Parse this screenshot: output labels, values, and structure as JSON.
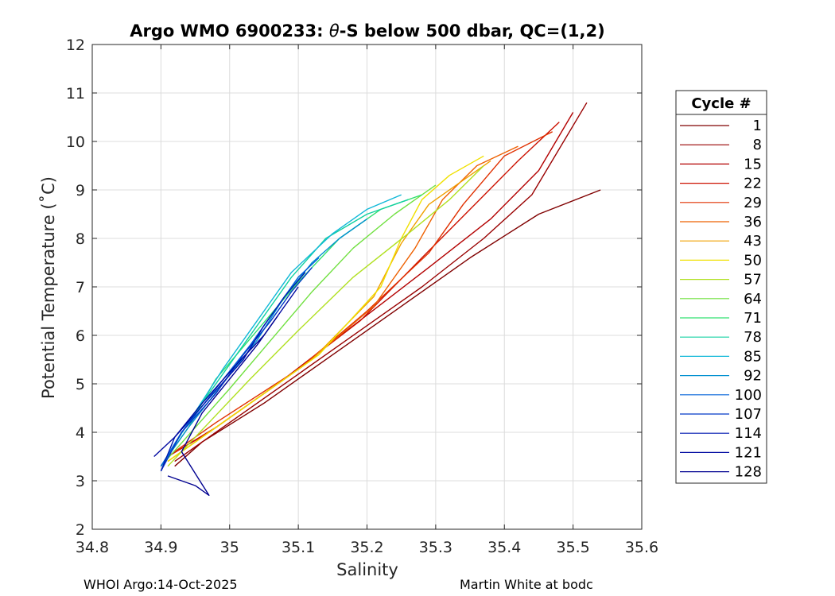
{
  "chart_data": {
    "type": "line",
    "title_prefix": "Argo WMO 6900233: ",
    "title_theta": "θ",
    "title_suffix": "-S below 500 dbar,  QC=(1,2)",
    "xlabel": "Salinity",
    "ylabel": "Potential Temperature (˚C)",
    "xlim": [
      34.8,
      35.6
    ],
    "ylim": [
      2,
      12
    ],
    "xticks": [
      "34.8",
      "34.9",
      "35",
      "35.1",
      "35.2",
      "35.3",
      "35.4",
      "35.5",
      "35.6"
    ],
    "yticks": [
      "2",
      "3",
      "4",
      "5",
      "6",
      "7",
      "8",
      "9",
      "10",
      "11",
      "12"
    ],
    "grid": true,
    "legend_title": "Cycle #",
    "legend_position": "right",
    "series": [
      {
        "name": "1",
        "color": "#800000",
        "x": [
          34.92,
          34.96,
          35.05,
          35.15,
          35.25,
          35.35,
          35.45,
          35.54
        ],
        "y": [
          3.3,
          3.8,
          4.6,
          5.6,
          6.6,
          7.6,
          8.5,
          9.0
        ]
      },
      {
        "name": "8",
        "color": "#990000",
        "x": [
          34.92,
          34.97,
          35.06,
          35.17,
          35.28,
          35.37,
          35.44,
          35.52
        ],
        "y": [
          3.4,
          3.9,
          4.8,
          5.9,
          7.0,
          8.0,
          8.9,
          10.8
        ]
      },
      {
        "name": "15",
        "color": "#b30000",
        "x": [
          34.91,
          34.97,
          35.07,
          35.18,
          35.29,
          35.38,
          35.45,
          35.5
        ],
        "y": [
          3.5,
          4.0,
          5.0,
          6.2,
          7.4,
          8.4,
          9.4,
          10.6
        ]
      },
      {
        "name": "22",
        "color": "#cc1100",
        "x": [
          34.91,
          34.98,
          35.08,
          35.19,
          35.28,
          35.35,
          35.42,
          35.48
        ],
        "y": [
          3.5,
          4.1,
          5.1,
          6.3,
          7.6,
          8.6,
          9.6,
          10.4
        ]
      },
      {
        "name": "29",
        "color": "#e03000",
        "x": [
          34.91,
          34.98,
          35.1,
          35.2,
          35.29,
          35.34,
          35.4,
          35.47
        ],
        "y": [
          3.5,
          4.2,
          5.3,
          6.5,
          7.7,
          8.7,
          9.7,
          10.2
        ]
      },
      {
        "name": "36",
        "color": "#ee6000",
        "x": [
          34.91,
          34.99,
          35.11,
          35.21,
          35.27,
          35.31,
          35.36,
          35.42
        ],
        "y": [
          3.4,
          4.2,
          5.4,
          6.6,
          7.8,
          8.8,
          9.5,
          9.9
        ]
      },
      {
        "name": "43",
        "color": "#f0a000",
        "x": [
          34.91,
          35.0,
          35.12,
          35.21,
          35.25,
          35.29,
          35.34,
          35.38
        ],
        "y": [
          3.4,
          4.3,
          5.5,
          6.8,
          7.9,
          8.7,
          9.2,
          9.6
        ]
      },
      {
        "name": "50",
        "color": "#f0e000",
        "x": [
          34.91,
          35.0,
          35.13,
          35.22,
          35.25,
          35.28,
          35.32,
          35.37
        ],
        "y": [
          3.4,
          4.3,
          5.6,
          7.0,
          8.0,
          8.8,
          9.3,
          9.7
        ]
      },
      {
        "name": "57",
        "color": "#b0e020",
        "x": [
          34.91,
          34.97,
          35.03,
          35.1,
          35.18,
          35.26,
          35.32,
          35.37
        ],
        "y": [
          3.3,
          4.2,
          5.1,
          6.1,
          7.2,
          8.1,
          8.8,
          9.5
        ]
      },
      {
        "name": "64",
        "color": "#70e040",
        "x": [
          34.9,
          34.95,
          35.0,
          35.06,
          35.12,
          35.18,
          35.24,
          35.3
        ],
        "y": [
          3.3,
          4.1,
          4.9,
          5.9,
          6.9,
          7.8,
          8.5,
          9.1
        ]
      },
      {
        "name": "71",
        "color": "#30e070",
        "x": [
          34.9,
          34.94,
          34.98,
          35.04,
          35.1,
          35.16,
          35.22,
          35.28
        ],
        "y": [
          3.3,
          4.1,
          5.1,
          6.1,
          7.1,
          8.0,
          8.6,
          8.9
        ]
      },
      {
        "name": "78",
        "color": "#10d0a0",
        "x": [
          34.9,
          34.94,
          34.99,
          35.04,
          35.09,
          35.14,
          35.2,
          35.26
        ],
        "y": [
          3.3,
          4.2,
          5.2,
          6.2,
          7.2,
          8.0,
          8.5,
          8.8
        ]
      },
      {
        "name": "85",
        "color": "#10b8d8",
        "x": [
          34.9,
          34.94,
          34.99,
          35.04,
          35.09,
          35.15,
          35.2,
          35.25
        ],
        "y": [
          3.3,
          4.2,
          5.3,
          6.3,
          7.3,
          8.1,
          8.6,
          8.9
        ]
      },
      {
        "name": "92",
        "color": "#0090d0",
        "x": [
          34.9,
          34.94,
          34.99,
          35.04,
          35.08,
          35.12,
          35.16,
          35.2
        ],
        "y": [
          3.3,
          4.1,
          5.0,
          5.9,
          6.8,
          7.5,
          8.0,
          8.4
        ]
      },
      {
        "name": "100",
        "color": "#0060d8",
        "x": [
          34.9,
          34.93,
          34.98,
          35.03,
          35.07,
          35.1,
          35.13
        ],
        "y": [
          3.3,
          4.0,
          4.9,
          5.8,
          6.6,
          7.2,
          7.6
        ]
      },
      {
        "name": "107",
        "color": "#0038c8",
        "x": [
          34.9,
          34.93,
          34.98,
          35.02,
          35.06,
          35.09,
          35.12
        ],
        "y": [
          3.2,
          4.0,
          4.8,
          5.6,
          6.3,
          6.9,
          7.4
        ]
      },
      {
        "name": "114",
        "color": "#0018b0",
        "x": [
          34.9,
          34.92,
          34.97,
          35.02,
          35.05,
          35.08,
          35.11
        ],
        "y": [
          3.2,
          3.9,
          4.7,
          5.5,
          6.2,
          6.8,
          7.3
        ]
      },
      {
        "name": "121",
        "color": "#0008a0",
        "x": [
          34.89,
          34.92,
          34.96,
          35.01,
          35.05,
          35.08,
          35.1
        ],
        "y": [
          3.5,
          3.9,
          4.6,
          5.4,
          6.0,
          6.6,
          7.0
        ]
      },
      {
        "name": "128",
        "color": "#000090",
        "x": [
          34.91,
          34.95,
          34.97,
          34.93,
          34.96,
          35.0,
          35.04,
          35.07
        ],
        "y": [
          3.1,
          2.9,
          2.7,
          3.6,
          4.4,
          5.1,
          5.8,
          6.4
        ]
      }
    ]
  },
  "footer": {
    "left": "WHOI Argo:14-Oct-2025",
    "right": "Martin White at bodc"
  }
}
